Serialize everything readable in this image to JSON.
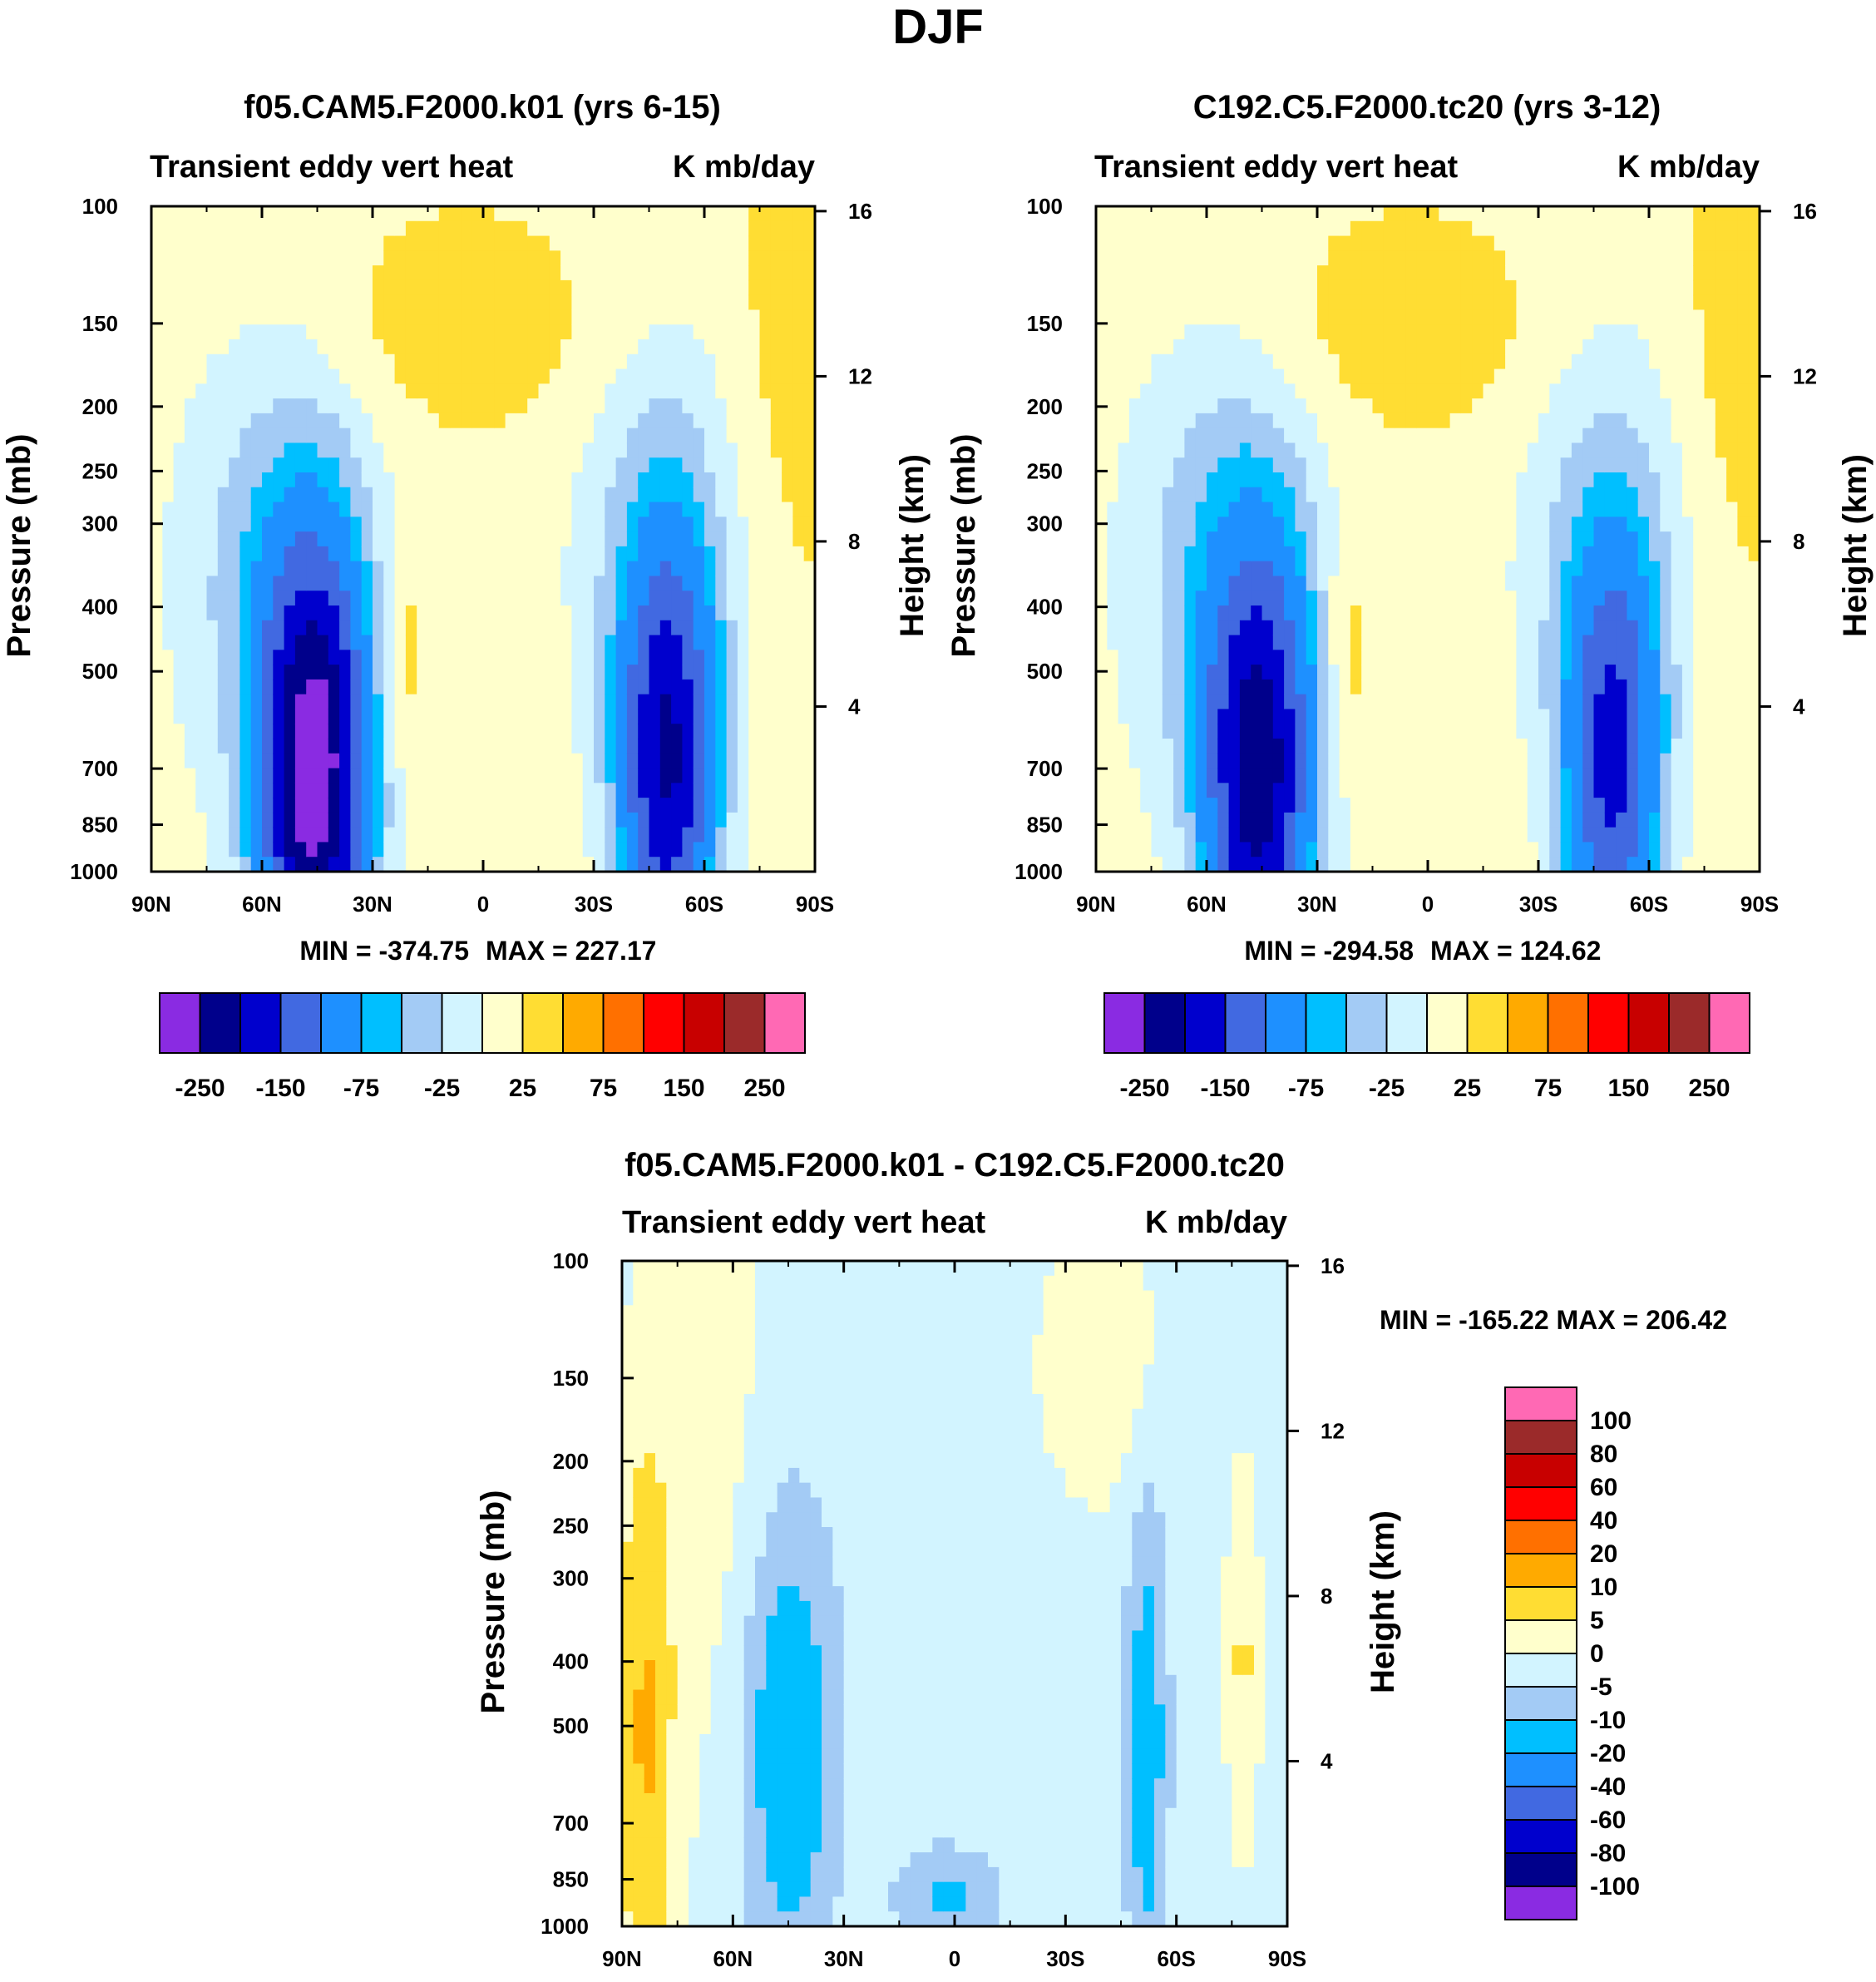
{
  "main_title": "DJF",
  "chart_data": [
    {
      "type": "heatmap",
      "panel": "control",
      "title": "f05.CAM5.F2000.k01 (yrs 6-15)",
      "left_string": "Transient eddy vert heat",
      "right_string": "K mb/day",
      "ylabel": "Pressure (mb)",
      "ylabel_right": "Height (km)",
      "x_ticks": [
        "90N",
        "60N",
        "30N",
        "0",
        "30S",
        "60S",
        "90S"
      ],
      "y_ticks": [
        "100",
        "150",
        "200",
        "250",
        "300",
        "400",
        "500",
        "700",
        "850",
        "1000"
      ],
      "height_ticks": [
        "16",
        "12",
        "8",
        "4"
      ],
      "xlim": [
        90,
        -90
      ],
      "ylim": [
        1000,
        100
      ],
      "min_label": "MIN = -374.75",
      "max_label": "MAX = 227.17",
      "min": -374.75,
      "max": 227.17,
      "colorbar_labels": [
        "-250",
        "-150",
        "-75",
        "-25",
        "25",
        "75",
        "150",
        "250"
      ],
      "colorbar_levels": [
        -300,
        -250,
        -200,
        -150,
        -100,
        -75,
        -50,
        -25,
        0,
        25,
        50,
        75,
        100,
        150,
        200,
        250,
        300
      ],
      "colorbar_colors": [
        "#8a2be2",
        "#00008b",
        "#0000cd",
        "#4169e1",
        "#1e90ff",
        "#00bfff",
        "#a3cbf5",
        "#d2f4ff",
        "#ffffcc",
        "#ffdd33",
        "#ffaa00",
        "#ff7000",
        "#ff0000",
        "#c80000",
        "#9b2a2a",
        "#ff69b4"
      ]
    },
    {
      "type": "heatmap",
      "panel": "test",
      "title": "C192.C5.F2000.tc20 (yrs 3-12)",
      "left_string": "Transient eddy vert heat",
      "right_string": "K mb/day",
      "ylabel": "Pressure (mb)",
      "ylabel_right": "Height (km)",
      "x_ticks": [
        "90N",
        "60N",
        "30N",
        "0",
        "30S",
        "60S",
        "90S"
      ],
      "y_ticks": [
        "100",
        "150",
        "200",
        "250",
        "300",
        "400",
        "500",
        "700",
        "850",
        "1000"
      ],
      "height_ticks": [
        "16",
        "12",
        "8",
        "4"
      ],
      "xlim": [
        90,
        -90
      ],
      "ylim": [
        1000,
        100
      ],
      "min_label": "MIN = -294.58",
      "max_label": "MAX = 124.62",
      "min": -294.58,
      "max": 124.62,
      "colorbar_labels": [
        "-250",
        "-150",
        "-75",
        "-25",
        "25",
        "75",
        "150",
        "250"
      ],
      "colorbar_levels": [
        -300,
        -250,
        -200,
        -150,
        -100,
        -75,
        -50,
        -25,
        0,
        25,
        50,
        75,
        100,
        150,
        200,
        250,
        300
      ],
      "colorbar_colors": [
        "#8a2be2",
        "#00008b",
        "#0000cd",
        "#4169e1",
        "#1e90ff",
        "#00bfff",
        "#a3cbf5",
        "#d2f4ff",
        "#ffffcc",
        "#ffdd33",
        "#ffaa00",
        "#ff7000",
        "#ff0000",
        "#c80000",
        "#9b2a2a",
        "#ff69b4"
      ]
    },
    {
      "type": "heatmap",
      "panel": "difference",
      "title": "f05.CAM5.F2000.k01 - C192.C5.F2000.tc20",
      "left_string": "Transient eddy vert heat",
      "right_string": "K mb/day",
      "ylabel": "Pressure (mb)",
      "ylabel_right": "Height (km)",
      "x_ticks": [
        "90N",
        "60N",
        "30N",
        "0",
        "30S",
        "60S",
        "90S"
      ],
      "y_ticks": [
        "100",
        "150",
        "200",
        "250",
        "300",
        "400",
        "500",
        "700",
        "850",
        "1000"
      ],
      "height_ticks": [
        "16",
        "12",
        "8",
        "4"
      ],
      "xlim": [
        90,
        -90
      ],
      "ylim": [
        1000,
        100
      ],
      "stats_label": "MIN = -165.22  MAX = 206.42",
      "min": -165.22,
      "max": 206.42,
      "colorbar_labels": [
        "100",
        "80",
        "60",
        "40",
        "20",
        "10",
        "5",
        "0",
        "-5",
        "-10",
        "-20",
        "-40",
        "-60",
        "-80",
        "-100"
      ],
      "colorbar_colors": [
        "#ff69b4",
        "#9b2a2a",
        "#c80000",
        "#ff0000",
        "#ff7000",
        "#ffaa00",
        "#ffdd33",
        "#ffffcc",
        "#d2f4ff",
        "#a3cbf5",
        "#00bfff",
        "#1e90ff",
        "#4169e1",
        "#0000cd",
        "#00008b",
        "#8a2be2"
      ]
    }
  ]
}
